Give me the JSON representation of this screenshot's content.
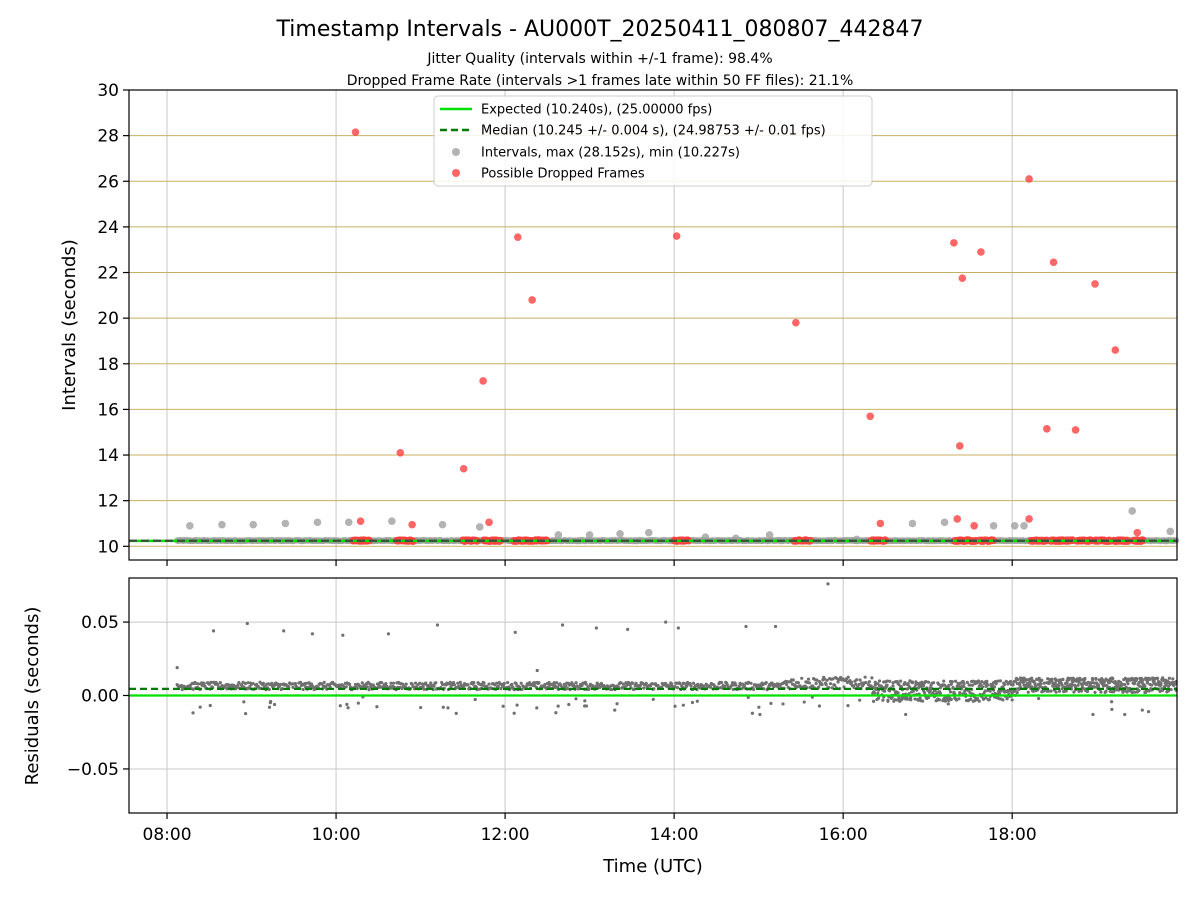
{
  "title": "Timestamp Intervals - AU000T_20250411_080807_442847",
  "subtitle_1": "Jitter Quality (intervals within +/-1 frame): 98.4%",
  "subtitle_2": "Dropped Frame Rate (intervals >1 frames late within 50 FF files): 21.1%",
  "colors": {
    "expected": "#00e000",
    "median": "#007a00",
    "interval_points": "#a0a0a0",
    "dropped_points": "#ff4040",
    "residual_points": "#707070",
    "hgrid_top": "#c8b060",
    "grid": "#c8c8c8"
  },
  "chart_data": [
    {
      "type": "scatter",
      "panel": "top",
      "xlabel": "",
      "ylabel": "Intervals (seconds)",
      "xlim": [
        7.55,
        19.95
      ],
      "ylim": [
        9.4,
        30
      ],
      "yticks": [
        10,
        12,
        14,
        16,
        18,
        20,
        22,
        24,
        26,
        28,
        30
      ],
      "ytick_labels": [
        "10",
        "12",
        "14",
        "16",
        "18",
        "20",
        "22",
        "24",
        "26",
        "28",
        "30"
      ],
      "grid": true,
      "legend_position": "top-center",
      "reference_lines": [
        {
          "name": "Expected (10.240s), (25.00000 fps)",
          "y": 10.24,
          "style": "solid"
        },
        {
          "name": "Median (10.245 +/- 0.004 s), (24.98753 +/- 0.01 fps)",
          "y": 10.245,
          "style": "dashed"
        }
      ],
      "series": [
        {
          "name": "Intervals, max (28.152s), min (10.227s)",
          "x": [
            8.27,
            8.65,
            9.02,
            9.4,
            9.78,
            10.15,
            10.66,
            11.26,
            11.7,
            12.63,
            13.0,
            13.36,
            13.7,
            14.37,
            14.73,
            15.13,
            16.16,
            16.82,
            17.2,
            17.78,
            18.03,
            18.14,
            19.42,
            19.87
          ],
          "y": [
            10.9,
            10.95,
            10.95,
            11.0,
            11.05,
            11.05,
            11.1,
            10.95,
            10.85,
            10.5,
            10.5,
            10.55,
            10.6,
            10.4,
            10.35,
            10.5,
            10.3,
            11.0,
            11.05,
            10.9,
            10.9,
            10.9,
            11.55,
            10.65
          ]
        },
        {
          "name": "Possible Dropped Frames",
          "x": [
            10.23,
            10.29,
            10.76,
            10.9,
            11.51,
            11.74,
            11.81,
            12.15,
            12.32,
            14.03,
            15.44,
            16.32,
            16.44,
            17.31,
            17.35,
            17.38,
            17.41,
            17.55,
            17.63,
            18.2,
            18.2,
            18.41,
            18.49,
            18.75,
            18.98,
            19.22,
            19.48
          ],
          "y": [
            28.15,
            11.1,
            14.1,
            10.95,
            13.4,
            17.25,
            11.05,
            23.55,
            20.8,
            23.6,
            19.8,
            15.7,
            11.0,
            23.3,
            11.2,
            14.4,
            21.75,
            10.9,
            22.9,
            26.1,
            11.2,
            15.15,
            22.45,
            15.1,
            21.5,
            18.6,
            10.6
          ]
        },
        {
          "name": "",
          "x_ranges": [
            [
              10.2,
              10.4
            ],
            [
              10.72,
              10.92
            ],
            [
              11.5,
              11.68
            ],
            [
              11.75,
              11.95
            ],
            [
              12.1,
              12.5
            ],
            [
              14.0,
              14.18
            ],
            [
              15.42,
              15.62
            ],
            [
              16.33,
              16.5
            ],
            [
              17.32,
              17.58
            ],
            [
              17.62,
              17.78
            ],
            [
              18.22,
              18.42
            ],
            [
              18.46,
              18.72
            ],
            [
              18.77,
              18.94
            ],
            [
              18.98,
              19.17
            ],
            [
              19.2,
              19.38
            ],
            [
              19.44,
              19.55
            ]
          ],
          "y": 10.25
        }
      ]
    },
    {
      "type": "scatter",
      "panel": "bottom",
      "xlabel": "Time (UTC)",
      "ylabel": "Residuals (seconds)",
      "xlim": [
        7.55,
        19.95
      ],
      "ylim": [
        -0.08,
        0.08
      ],
      "xticks": [
        8,
        10,
        12,
        14,
        16,
        18
      ],
      "xtick_labels": [
        "08:00",
        "10:00",
        "12:00",
        "14:00",
        "16:00",
        "18:00"
      ],
      "yticks": [
        0.05,
        0.0,
        -0.05
      ],
      "ytick_labels": [
        "0.05",
        "0.00",
        "−0.05"
      ],
      "grid": true,
      "reference_lines": [
        {
          "name": "Expected",
          "y": 0.0,
          "style": "solid"
        },
        {
          "name": "Median",
          "y": 0.0045,
          "style": "dashed"
        }
      ],
      "series": [
        {
          "name": "",
          "outliers_x": [
            8.12,
            8.55,
            8.95,
            9.38,
            9.72,
            10.08,
            10.62,
            11.2,
            12.12,
            12.38,
            12.68,
            13.08,
            13.45,
            13.9,
            14.05,
            14.85,
            15.2,
            15.82
          ],
          "outliers_y": [
            0.019,
            0.044,
            0.049,
            0.044,
            0.042,
            0.041,
            0.042,
            0.048,
            0.043,
            0.017,
            0.048,
            0.046,
            0.045,
            0.05,
            0.046,
            0.047,
            0.047,
            0.076
          ],
          "band_segments": [
            {
              "x_range": [
                8.12,
                15.3
              ],
              "y_center": 0.0065,
              "y_spread": 0.0025
            },
            {
              "x_range": [
                15.3,
                16.35
              ],
              "y_center": 0.0085,
              "y_spread": 0.004
            },
            {
              "x_range": [
                16.35,
                18.05
              ],
              "y_center": 0.003,
              "y_spread": 0.007
            },
            {
              "x_range": [
                18.05,
                19.95
              ],
              "y_center": 0.007,
              "y_spread": 0.005
            }
          ]
        }
      ]
    }
  ]
}
